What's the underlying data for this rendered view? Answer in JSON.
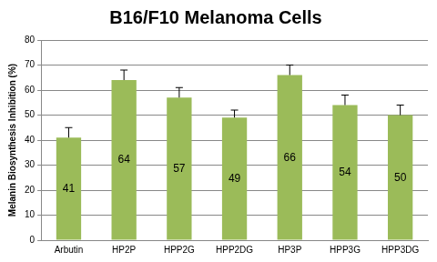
{
  "chart_data": {
    "type": "bar",
    "title": "B16/F10 Melanoma Cells",
    "y_label": "Melanin Biosynthesis Inhibition (%)",
    "categories": [
      "Arbutin",
      "HP2P",
      "HPP2G",
      "HPP2DG",
      "HP3P",
      "HPP3G",
      "HPP3DG"
    ],
    "values": [
      41,
      64,
      57,
      49,
      66,
      54,
      50
    ],
    "errors": [
      4,
      4,
      4,
      3,
      4,
      4,
      4
    ],
    "color": "#9bbb59",
    "ylim": [
      0,
      80
    ],
    "yticks": [
      0,
      10,
      20,
      30,
      40,
      50,
      60,
      70,
      80
    ],
    "grid": true,
    "data_labels": true
  }
}
